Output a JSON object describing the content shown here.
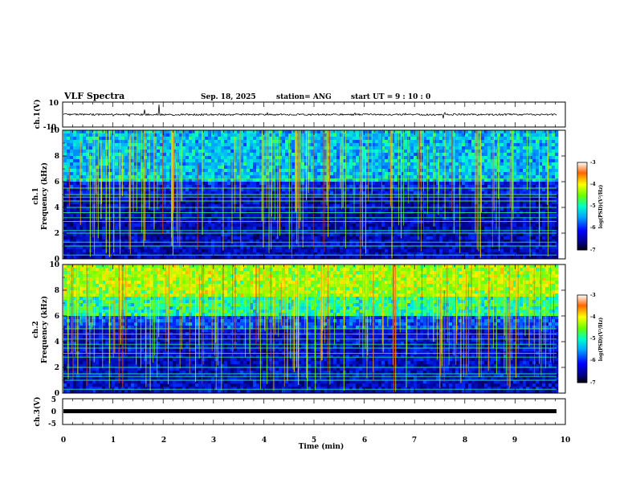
{
  "chart_data": {
    "type": "heatmap",
    "title": "VLF Spectra",
    "date": "Sep. 18, 2025",
    "station": "station= ANG",
    "start_label": "start  UT =",
    "start_time": "9 : 10 : 0",
    "x_axis": {
      "label": "Time (min)",
      "range": [
        0,
        10
      ],
      "ticks": [
        "0",
        "1",
        "2",
        "3",
        "4",
        "5",
        "6",
        "7",
        "8",
        "9",
        "10"
      ]
    },
    "panels": [
      {
        "type": "line",
        "label": "ch.1(V)",
        "range": [
          -10,
          10
        ],
        "tick_top": "10",
        "tick_bottom": "-10",
        "trace": "noisy waveform around 0 V, amplitude about 1 V, data up to 9.8 min"
      },
      {
        "type": "heatmap",
        "label_ch": "ch.1",
        "label_freq": "Frequency (kHz)",
        "range": [
          0,
          10
        ],
        "ticks": [
          "0",
          "2",
          "4",
          "6",
          "8",
          "10"
        ],
        "colorbar": {
          "label": "log(PSD)(V²/Hz)",
          "ticks": [
            "-3",
            "-4",
            "-5",
            "-6",
            "-7"
          ],
          "range": [
            -7,
            -3
          ]
        }
      },
      {
        "type": "heatmap",
        "label_ch": "ch.2",
        "label_freq": "Frequency (kHz)",
        "range": [
          0,
          10
        ],
        "ticks": [
          "0",
          "2",
          "4",
          "6",
          "8",
          "10"
        ],
        "colorbar": {
          "label": "log(PSD)(V²/Hz)",
          "ticks": [
            "-3",
            "-4",
            "-5",
            "-6",
            "-7"
          ],
          "range": [
            -7,
            -3
          ]
        }
      },
      {
        "type": "line",
        "label": "ch.3(V)",
        "range": [
          -5,
          5
        ],
        "tick_top": "5",
        "tick_mid": "0",
        "tick_bottom": "-5",
        "trace": "flat thick line near -1 V"
      }
    ],
    "axis_notes": {
      "tonal_lines_khz_ch1": [
        0.3,
        1.0,
        1.3,
        2.0,
        2.2,
        2.9,
        3.2,
        3.6,
        4.0,
        4.5,
        4.8,
        5.0,
        5.5,
        6.2
      ],
      "tonal_lines_khz_ch2": [
        0.3,
        1.0,
        1.3,
        1.5,
        2.0,
        2.8,
        3.1,
        3.5,
        3.8,
        4.2,
        4.6,
        5.0
      ]
    }
  }
}
